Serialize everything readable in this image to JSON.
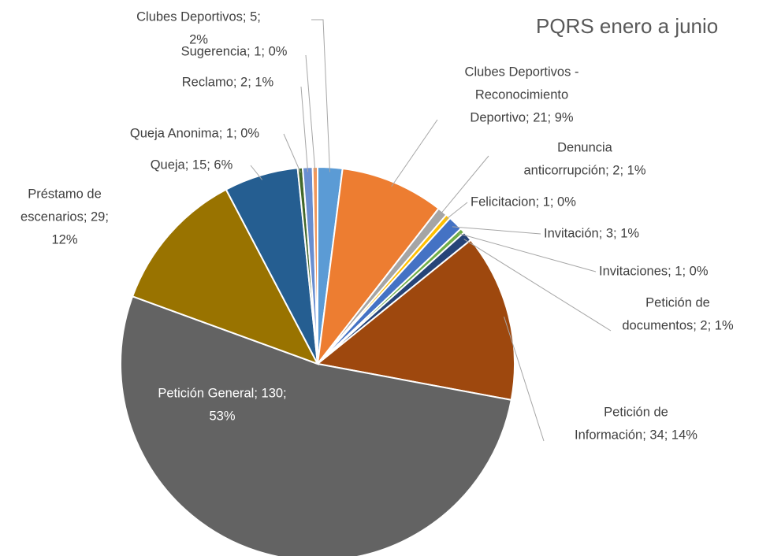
{
  "chart_data": {
    "type": "pie",
    "title": "PQRS enero a junio",
    "categories": [
      "Clubes Deportivos",
      "Clubes Deportivos - Reconocimiento Deportivo",
      "Denuncia anticorrupción",
      "Felicitacion",
      "Invitación",
      "Invitaciones",
      "Petición de documentos",
      "Petición de Información",
      "Petición General",
      "Préstamo de escenarios",
      "Queja",
      "Queja Anonima",
      "Reclamo",
      "Sugerencia"
    ],
    "values": [
      5,
      21,
      2,
      1,
      3,
      1,
      2,
      34,
      130,
      29,
      15,
      1,
      2,
      1
    ],
    "labels": [
      [
        "Clubes Deportivos; 5;",
        "2%"
      ],
      [
        "Clubes Deportivos -",
        "Reconocimiento",
        "Deportivo; 21; 9%"
      ],
      [
        "Denuncia",
        "anticorrupción; 2; 1%"
      ],
      [
        "Felicitacion; 1; 0%"
      ],
      [
        "Invitación; 3; 1%"
      ],
      [
        "Invitaciones; 1; 0%"
      ],
      [
        "Petición de",
        "documentos; 2; 1%"
      ],
      [
        "Petición de",
        "Información; 34; 14%"
      ],
      [
        "Petición General; 130;",
        "53%"
      ],
      [
        "Préstamo de",
        "escenarios; 29;",
        "12%"
      ],
      [
        "Queja; 15; 6%"
      ],
      [
        "Queja Anonima; 1; 0%"
      ],
      [
        "Reclamo; 2; 1%"
      ],
      [
        "Sugerencia; 1; 0%"
      ]
    ],
    "colors": [
      "#5b9bd5",
      "#ed7d31",
      "#a5a5a5",
      "#ffc000",
      "#4472c4",
      "#70ad47",
      "#264478",
      "#9e480e",
      "#636363",
      "#997300",
      "#255e91",
      "#43682b",
      "#698ed0",
      "#f1975a"
    ]
  }
}
